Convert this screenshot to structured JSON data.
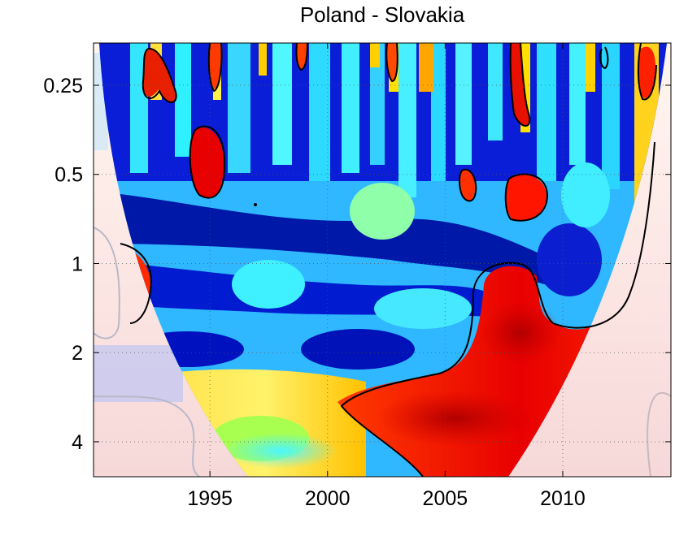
{
  "chart_data": {
    "type": "heatmap",
    "title": "Poland - Slovakia",
    "xlabel": "",
    "ylabel": "",
    "x_ticks": [
      "1995",
      "2000",
      "2005",
      "2010"
    ],
    "x_tick_values": [
      1995,
      2000,
      2005,
      2010
    ],
    "y_ticks": [
      "0.25",
      "0.5",
      "1",
      "2",
      "4"
    ],
    "y_tick_values": [
      0.25,
      0.5,
      1,
      2,
      4
    ],
    "xlim": [
      1990.05,
      2014.6
    ],
    "ylim": [
      0.18,
      5.25
    ],
    "y_scale": "log2",
    "y_reversed": true,
    "grid": true,
    "colormap": [
      "#00008f",
      "#0000ff",
      "#00ffff",
      "#ffff00",
      "#ff0000",
      "#800000"
    ],
    "coherence_value_range": [
      0,
      1
    ],
    "significance_contour_color": "#000000",
    "cone_of_influence": "shaded"
  }
}
